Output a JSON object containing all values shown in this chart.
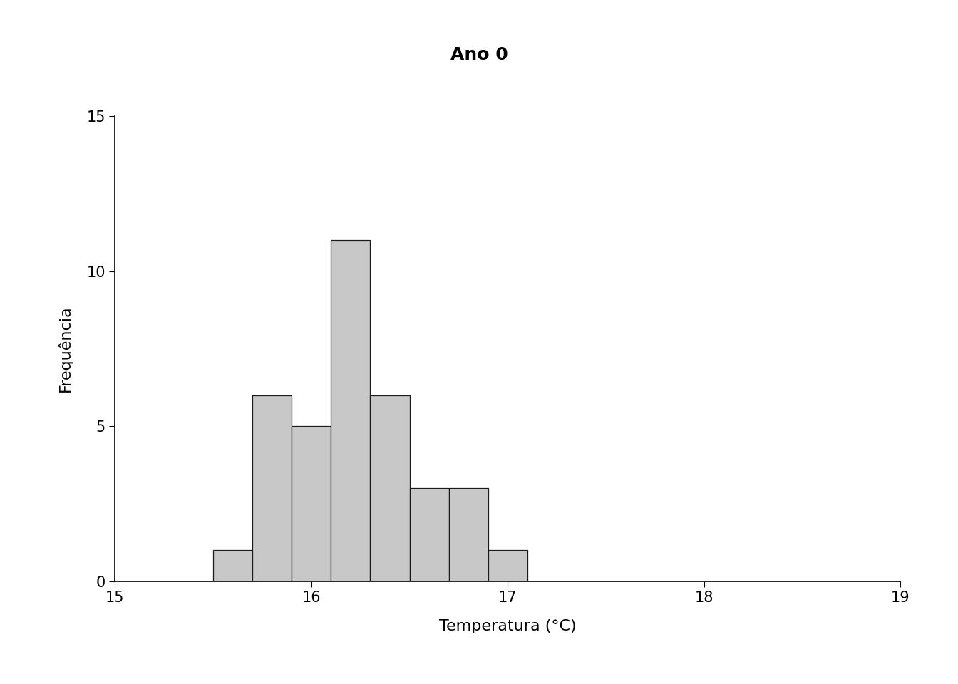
{
  "title": "Ano 0",
  "xlabel": "Temperatura (°C)",
  "ylabel": "Frequência",
  "bar_color": "#c8c8c8",
  "bar_edgecolor": "#1a1a1a",
  "xlim": [
    15,
    19
  ],
  "ylim": [
    0,
    15
  ],
  "xticks": [
    15,
    16,
    17,
    18,
    19
  ],
  "yticks": [
    0,
    5,
    10,
    15
  ],
  "bin_edges": [
    15.5,
    15.7,
    15.9,
    16.1,
    16.3,
    16.5,
    16.7,
    16.9,
    17.1
  ],
  "counts": [
    1,
    6,
    5,
    11,
    6,
    3,
    3,
    1
  ],
  "title_fontsize": 18,
  "label_fontsize": 16,
  "tick_fontsize": 15,
  "background_color": "#ffffff"
}
